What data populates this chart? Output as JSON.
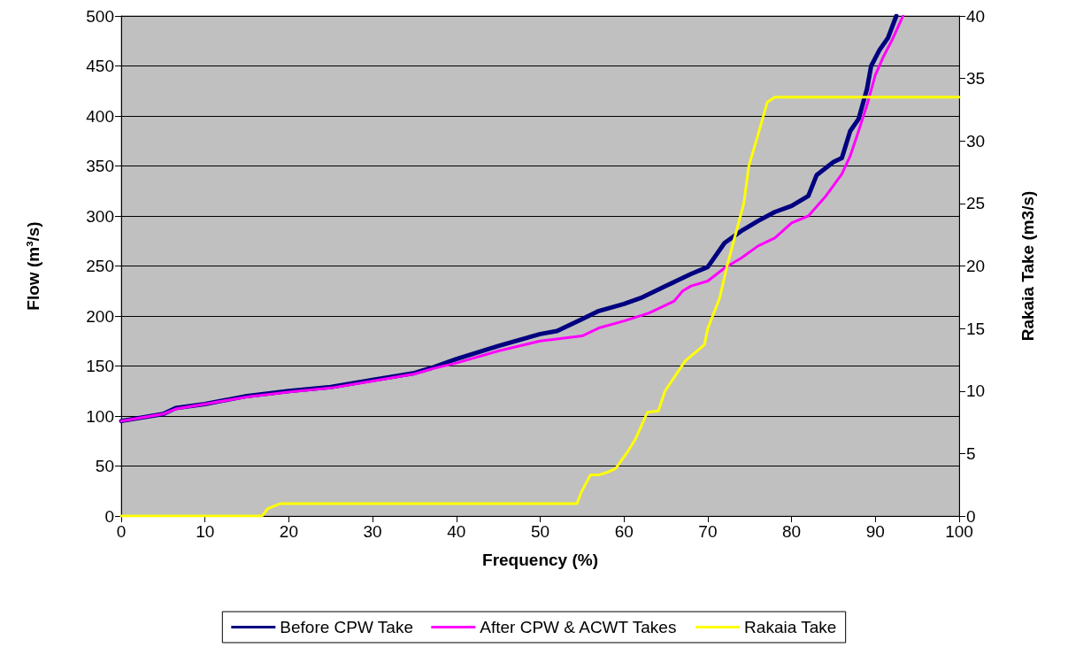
{
  "chart_data": {
    "type": "line",
    "xlabel": "Frequency (%)",
    "ylabel": "Flow (m³/s)",
    "y2label": "Rakaia Take (m3/s)",
    "xlim": [
      0,
      100
    ],
    "xticks": [
      0,
      10,
      20,
      30,
      40,
      50,
      60,
      70,
      80,
      90,
      100
    ],
    "ylim": [
      0,
      500
    ],
    "yticks": [
      0,
      50,
      100,
      150,
      200,
      250,
      300,
      350,
      400,
      450,
      500
    ],
    "y2lim": [
      0,
      40
    ],
    "y2ticks": [
      0,
      5,
      10,
      15,
      20,
      25,
      30,
      35,
      40
    ],
    "grid": "y",
    "legend": "bottom",
    "marker": "none",
    "line_style": "solid",
    "series": [
      {
        "name": "Before CPW Take",
        "color": "#000080",
        "x": [
          0,
          5,
          6.5,
          10,
          15,
          20,
          25,
          30,
          35,
          37,
          40,
          45,
          50,
          52,
          55,
          57,
          60,
          62,
          65,
          68,
          70,
          72,
          74,
          76,
          78,
          80,
          82,
          83,
          85,
          86,
          87,
          88,
          89,
          89.5,
          90.5,
          91.5,
          92.5
        ],
        "values": [
          95,
          102,
          108,
          112,
          120,
          125,
          129,
          136,
          143,
          148,
          157,
          170,
          182,
          185,
          197,
          205,
          212,
          218,
          230,
          242,
          249,
          273,
          285,
          295,
          304,
          310,
          320,
          341,
          354,
          358,
          385,
          397,
          427,
          450,
          466,
          478,
          500
        ]
      },
      {
        "name": "After CPW & ACWT Takes",
        "color": "#ff00ff",
        "x": [
          0,
          5,
          6.5,
          10,
          15,
          20,
          25,
          30,
          35,
          37,
          40,
          45,
          50,
          55,
          57,
          60,
          63,
          66,
          67,
          68,
          70,
          72,
          74,
          76,
          78,
          80,
          82,
          84,
          86,
          87,
          88,
          89,
          90,
          91,
          92,
          93.3
        ],
        "values": [
          95,
          102,
          107,
          112,
          119,
          124,
          128,
          135,
          142,
          147,
          153,
          165,
          175,
          180,
          188,
          195,
          203,
          215,
          225,
          230,
          235,
          248,
          258,
          270,
          278,
          293,
          300,
          319,
          342,
          360,
          385,
          411,
          441,
          460,
          476,
          500
        ]
      },
      {
        "name": "Rakaia Take",
        "color": "#ffff00",
        "axis": "y2",
        "x": [
          0,
          16.8,
          17.5,
          19,
          53,
          54.4,
          54.9,
          56,
          57.1,
          58,
          59,
          60.4,
          61.4,
          62.8,
          64.1,
          64.9,
          67.3,
          69.6,
          70,
          71.4,
          72.3,
          74.3,
          74.9,
          76,
          77.1,
          78,
          100
        ],
        "values": [
          0,
          0,
          0.6,
          1,
          1,
          1,
          1.9,
          3.3,
          3.3,
          3.5,
          3.8,
          5.1,
          6.2,
          8.3,
          8.4,
          10,
          12.4,
          13.7,
          15,
          17.4,
          20,
          25,
          28,
          30.5,
          33.1,
          33.5,
          33.5
        ]
      }
    ]
  }
}
